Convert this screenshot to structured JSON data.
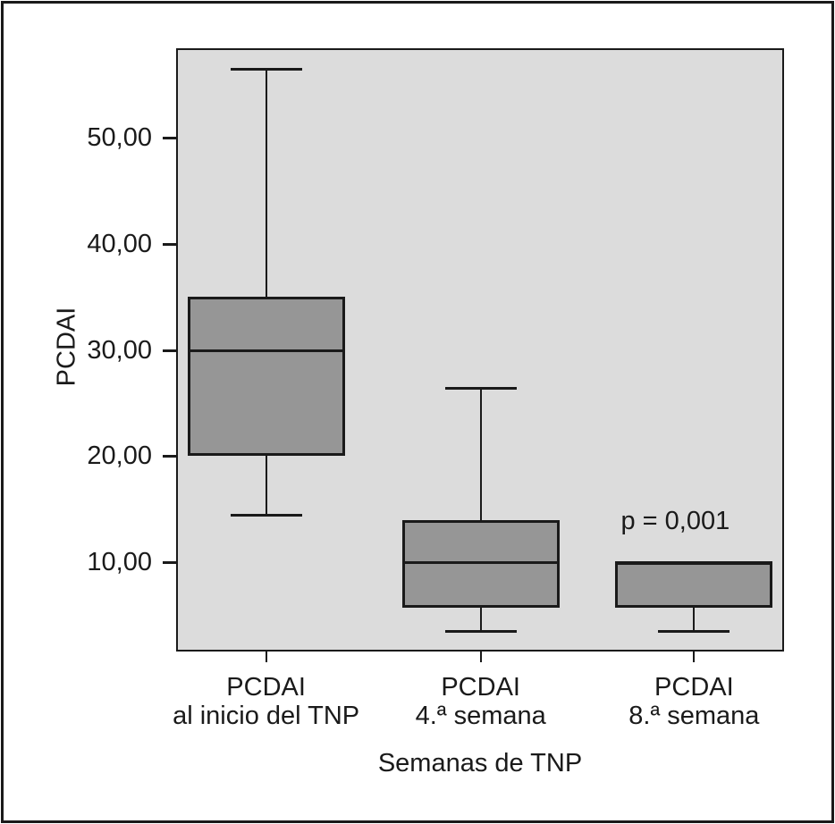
{
  "chart_data": {
    "type": "boxplot",
    "title": "",
    "ylabel": "PCDAI",
    "xlabel": "Semanas de TNP",
    "ylim": [
      1.6,
      58.4
    ],
    "grid": false,
    "y_ticks": [
      {
        "value": 10,
        "label": "10,00"
      },
      {
        "value": 20,
        "label": "20,00"
      },
      {
        "value": 30,
        "label": "30,00"
      },
      {
        "value": 40,
        "label": "40,00"
      },
      {
        "value": 50,
        "label": "50,00"
      }
    ],
    "categories": [
      {
        "line1": "PCDAI",
        "line2": "al inicio del TNP"
      },
      {
        "line1": "PCDAI",
        "line2": "4.ª semana"
      },
      {
        "line1": "PCDAI",
        "line2": "8.ª semana"
      }
    ],
    "boxes": [
      {
        "min": 14.5,
        "q1": 20.0,
        "median": 30.0,
        "q3": 35.0,
        "max": 56.5
      },
      {
        "min": 3.5,
        "q1": 5.7,
        "median": 10.0,
        "q3": 14.0,
        "max": 26.4
      },
      {
        "min": 3.5,
        "q1": 5.7,
        "median": 10.0,
        "q3": 10.0,
        "max": 10.0
      }
    ],
    "annotation": {
      "text": "p = 0,001",
      "category_index": 2,
      "y_value": 14.0
    }
  },
  "colors": {
    "plot_bg": "#dcdcdc",
    "box_fill": "#969696",
    "line": "#1a1a1a",
    "frame": "#1a1a1a",
    "page_bg": "#ffffff"
  }
}
